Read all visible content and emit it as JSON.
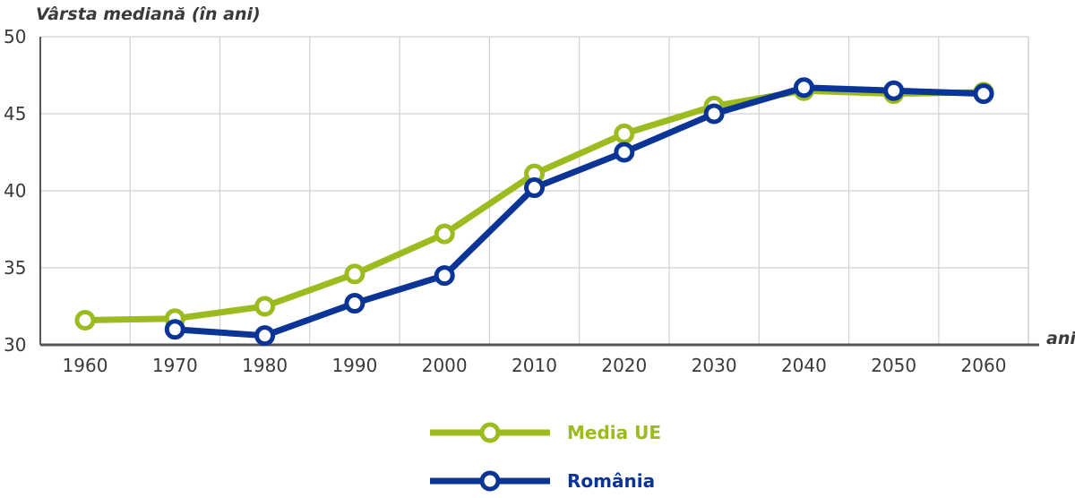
{
  "chart_data": {
    "type": "line",
    "ylabel": "Vârsta mediană (în ani)",
    "xlabel": "ani",
    "x": [
      1960,
      1970,
      1980,
      1990,
      2000,
      2010,
      2020,
      2030,
      2040,
      2050,
      2060
    ],
    "x_ticks": [
      "1960",
      "1970",
      "1980",
      "1990",
      "2000",
      "2010",
      "2020",
      "2030",
      "2040",
      "2050",
      "2060"
    ],
    "ylim": [
      30,
      50
    ],
    "y_ticks": [
      "30",
      "35",
      "40",
      "45",
      "50"
    ],
    "grid": true,
    "legend_position": "bottom-center",
    "series": [
      {
        "name": "Media UE",
        "color": "#9bbb1e",
        "values": [
          31.6,
          31.7,
          32.5,
          34.6,
          37.2,
          41.1,
          43.7,
          45.5,
          46.5,
          46.3,
          46.4
        ]
      },
      {
        "name": "România",
        "color": "#0a3596",
        "values": [
          null,
          31.0,
          30.6,
          32.7,
          34.5,
          40.2,
          42.5,
          45.0,
          46.7,
          46.5,
          46.3
        ]
      }
    ]
  }
}
